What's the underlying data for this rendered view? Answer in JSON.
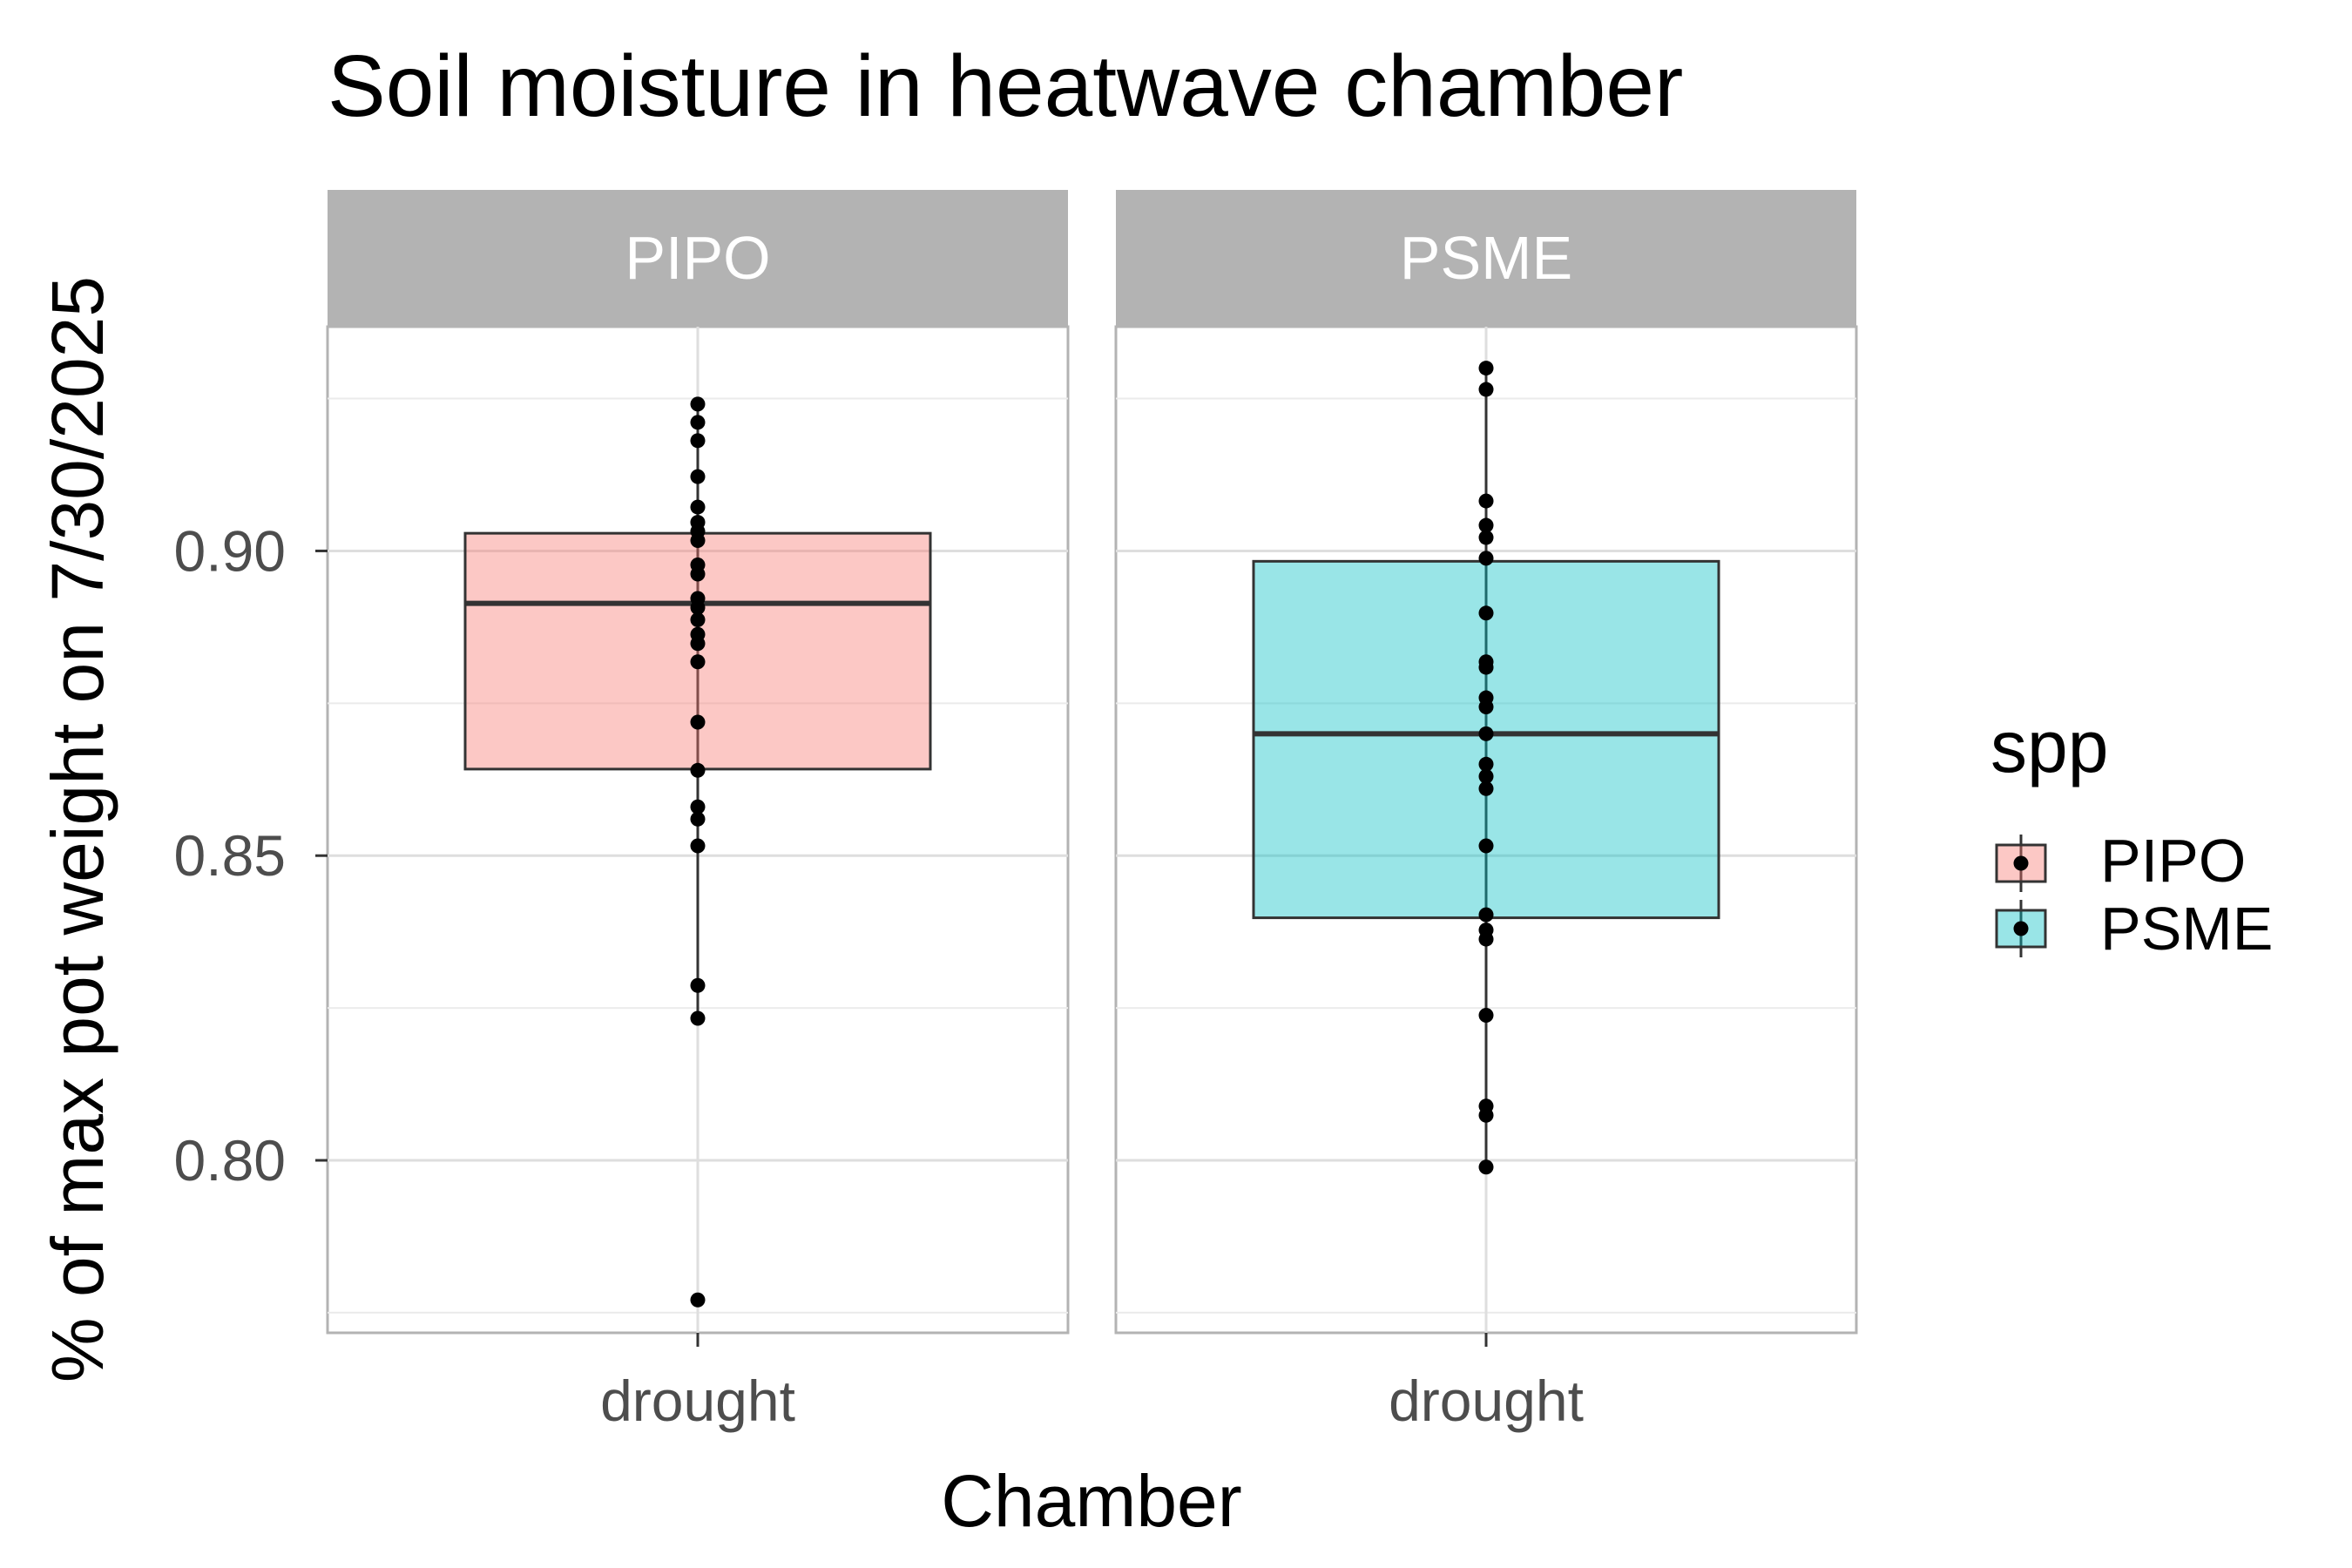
{
  "chart_data": {
    "type": "box",
    "title": "Soil moisture in heatwave chamber",
    "xlabel": "Chamber",
    "ylabel": "% of max pot weight on 7/30/2025",
    "ylim": [
      0.7717,
      0.9368
    ],
    "y_ticks": [
      0.8,
      0.85,
      0.9
    ],
    "y_tick_labels": [
      "0.80",
      "0.85",
      "0.90"
    ],
    "grid": true,
    "legend": {
      "title": "spp",
      "position": "right",
      "entries": [
        "PIPO",
        "PSME"
      ]
    },
    "facets": [
      {
        "label": "PIPO",
        "category": "drought",
        "color": "#F8766D",
        "box": {
          "q1": 0.8642,
          "median": 0.8914,
          "q3": 0.9029,
          "whisker_low": 0.8233,
          "whisker_high": 0.9241
        },
        "points": [
          0.9241,
          0.9211,
          0.9181,
          0.9122,
          0.9072,
          0.9047,
          0.9032,
          0.9017,
          0.8977,
          0.8962,
          0.8922,
          0.8907,
          0.8887,
          0.8863,
          0.8848,
          0.8818,
          0.8719,
          0.864,
          0.858,
          0.856,
          0.8516,
          0.8287,
          0.8233,
          0.7771
        ]
      },
      {
        "label": "PSME",
        "category": "drought",
        "color": "#00BFC4",
        "box": {
          "q1": 0.8398,
          "median": 0.87,
          "q3": 0.8983,
          "whisker_low": 0.7989,
          "whisker_high": 0.93
        },
        "points": [
          0.93,
          0.9265,
          0.9082,
          0.9042,
          0.9022,
          0.8988,
          0.8898,
          0.8818,
          0.8809,
          0.8759,
          0.8744,
          0.87,
          0.865,
          0.863,
          0.861,
          0.8516,
          0.8403,
          0.8378,
          0.8363,
          0.8238,
          0.8089,
          0.8074,
          0.7989
        ]
      }
    ]
  }
}
